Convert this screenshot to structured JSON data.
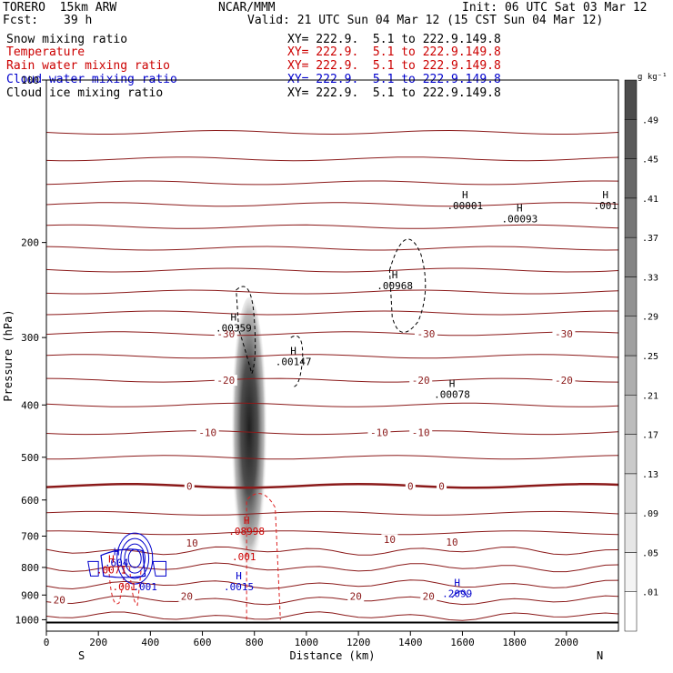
{
  "header": {
    "model": "TORERO  15km ARW",
    "org": "NCAR/MMM",
    "init": "Init: 06 UTC Sat 03 Mar 12",
    "fcst_label": "Fcst:",
    "fcst_value": "39 h",
    "valid": "Valid: 21 UTC Sun 04 Mar 12 (15 CST Sun 04 Mar 12)"
  },
  "fields": [
    {
      "name": "Snow mixing ratio",
      "color": "#000000",
      "xy": "XY= 222.9.  5.1 to 222.9.149.8"
    },
    {
      "name": "Temperature",
      "color": "#cc0000",
      "xy": "XY= 222.9.  5.1 to 222.9.149.8"
    },
    {
      "name": "Rain water mixing ratio",
      "color": "#cc0000",
      "xy": "XY= 222.9.  5.1 to 222.9.149.8"
    },
    {
      "name": "Cloud water mixing ratio",
      "color": "#0000cc",
      "xy": "XY= 222.9.  5.1 to 222.9.149.8"
    },
    {
      "name": "Cloud ice mixing ratio",
      "color": "#000000",
      "xy": "XY= 222.9.  5.1 to 222.9.149.8"
    }
  ],
  "chart_data": {
    "type": "heatmap",
    "xlabel": "Distance (km)",
    "ylabel": "Pressure (hPa)",
    "xlim": [
      0,
      2200
    ],
    "ylim": [
      1050,
      100
    ],
    "x_ticks": [
      0,
      200,
      400,
      600,
      800,
      1000,
      1200,
      1400,
      1600,
      1800,
      2000
    ],
    "y_ticks": [
      100,
      200,
      300,
      400,
      500,
      600,
      700,
      800,
      900,
      1000
    ],
    "y_scale": "log",
    "left_end": "S",
    "right_end": "N",
    "colorbar": {
      "unit": "g kg⁻¹",
      "labels": [
        ".01",
        ".05",
        ".09",
        ".13",
        ".17",
        ".21",
        ".25",
        ".29",
        ".33",
        ".37",
        ".41",
        ".45",
        ".49"
      ],
      "colors": [
        "#ffffff",
        "#f4f4f4",
        "#e6e6e6",
        "#d8d8d8",
        "#cacaca",
        "#bcbcbc",
        "#aeaeae",
        "#a0a0a0",
        "#929292",
        "#848484",
        "#767676",
        "#686868",
        "#5a5a5a",
        "#4c4c4c"
      ]
    },
    "temperature_contours": {
      "color": "#8b1a1a",
      "freezing_level_hPa": 570,
      "labels": [
        {
          "text": "-30",
          "x": 690,
          "p": 295
        },
        {
          "text": "-30",
          "x": 1460,
          "p": 295
        },
        {
          "text": "-30",
          "x": 1990,
          "p": 295
        },
        {
          "text": "-20",
          "x": 690,
          "p": 360
        },
        {
          "text": "-20",
          "x": 1440,
          "p": 360
        },
        {
          "text": "-20",
          "x": 1990,
          "p": 360
        },
        {
          "text": "-10",
          "x": 620,
          "p": 450
        },
        {
          "text": "-10",
          "x": 1280,
          "p": 450
        },
        {
          "text": "-10",
          "x": 1440,
          "p": 450
        },
        {
          "text": "0",
          "x": 550,
          "p": 565
        },
        {
          "text": "0",
          "x": 1400,
          "p": 565
        },
        {
          "text": "0",
          "x": 1520,
          "p": 565
        },
        {
          "text": "10",
          "x": 560,
          "p": 720
        },
        {
          "text": "10",
          "x": 1320,
          "p": 710
        },
        {
          "text": "10",
          "x": 1560,
          "p": 718
        },
        {
          "text": "20",
          "x": 50,
          "p": 918
        },
        {
          "text": "20",
          "x": 540,
          "p": 905
        },
        {
          "text": "20",
          "x": 1190,
          "p": 905
        },
        {
          "text": "20",
          "x": 1470,
          "p": 905
        }
      ]
    },
    "maxima": [
      {
        "label": "H",
        "value": ".00001",
        "x": 1610,
        "p": 172,
        "color": "#000000"
      },
      {
        "label": "H",
        "value": ".00093",
        "x": 1820,
        "p": 182,
        "color": "#000000"
      },
      {
        "label": "H",
        "value": ".001",
        "x": 2150,
        "p": 172,
        "color": "#000000"
      },
      {
        "label": "H",
        "value": ".00968",
        "x": 1340,
        "p": 242,
        "color": "#000000"
      },
      {
        "label": "H",
        "value": ".00359",
        "x": 720,
        "p": 290,
        "color": "#000000"
      },
      {
        "label": "H",
        "value": ".00147",
        "x": 950,
        "p": 335,
        "color": "#000000"
      },
      {
        "label": "H",
        "value": ".00078",
        "x": 1560,
        "p": 385,
        "color": "#000000"
      },
      {
        "label": "H",
        "value": ".08998",
        "x": 770,
        "p": 690,
        "color": "#cc0000"
      },
      {
        "label": "",
        "value": ".001",
        "x": 760,
        "p": 770,
        "color": "#cc0000"
      },
      {
        "label": "H",
        "value": ".604",
        "x": 270,
        "p": 790,
        "color": "#0000cc"
      },
      {
        "label": "H",
        "value": ".0071",
        "x": 250,
        "p": 815,
        "color": "#cc0000"
      },
      {
        "label": "",
        "value": ".001",
        "x": 300,
        "p": 875,
        "color": "#cc0000"
      },
      {
        "label": "",
        "value": ".001",
        "x": 380,
        "p": 875,
        "color": "#0000cc"
      },
      {
        "label": "H",
        "value": ".0015",
        "x": 740,
        "p": 875,
        "color": "#0000cc"
      },
      {
        "label": "H",
        "value": ".2099",
        "x": 1580,
        "p": 900,
        "color": "#0000cc"
      }
    ]
  }
}
